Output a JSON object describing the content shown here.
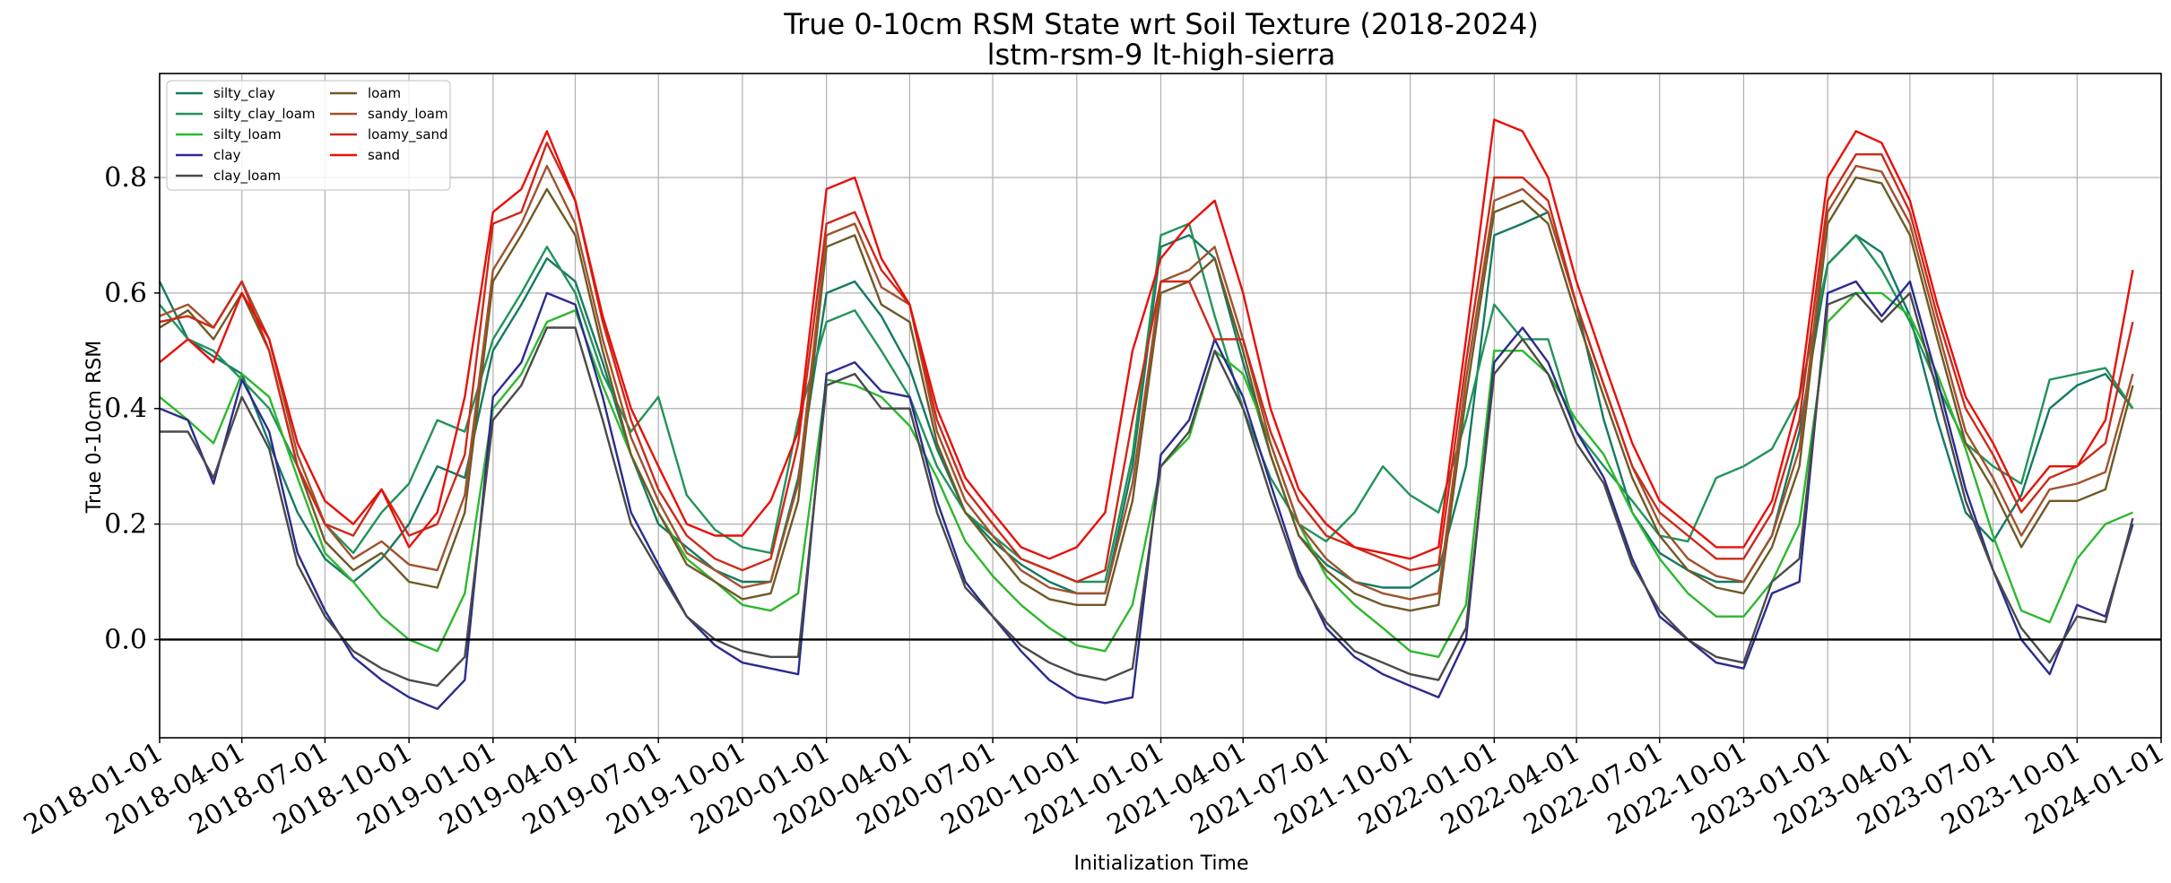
{
  "chart_data": {
    "type": "line",
    "title": "True 0-10cm RSM State wrt Soil Texture (2018-2024)",
    "subtitle": "lstm-rsm-9 lt-high-sierra",
    "xlabel": "Initialization Time",
    "ylabel": "True 0-10cm RSM",
    "xlim": [
      "2018-01-01",
      "2024-01-01"
    ],
    "ylim": [
      -0.17,
      0.98
    ],
    "x_ticks": [
      "2018-01-01",
      "2018-04-01",
      "2018-07-01",
      "2018-10-01",
      "2019-01-01",
      "2019-04-01",
      "2019-07-01",
      "2019-10-01",
      "2020-01-01",
      "2020-04-01",
      "2020-07-01",
      "2020-10-01",
      "2021-01-01",
      "2021-04-01",
      "2021-07-01",
      "2021-10-01",
      "2022-01-01",
      "2022-04-01",
      "2022-07-01",
      "2022-10-01",
      "2023-01-01",
      "2023-04-01",
      "2023-07-01",
      "2023-10-01",
      "2024-01-01"
    ],
    "y_ticks": [
      0.0,
      0.2,
      0.4,
      0.6,
      0.8
    ],
    "y_tick_labels": [
      "0.0",
      "0.2",
      "0.4",
      "0.6",
      "0.8"
    ],
    "grid": true,
    "zero_line": true,
    "legend_position": "top-left",
    "legend_columns": 2,
    "x": [
      "2018-01-01",
      "2018-02-01",
      "2018-03-01",
      "2018-04-01",
      "2018-05-01",
      "2018-06-01",
      "2018-07-01",
      "2018-08-01",
      "2018-09-01",
      "2018-10-01",
      "2018-11-01",
      "2018-12-01",
      "2019-01-01",
      "2019-02-01",
      "2019-03-01",
      "2019-04-01",
      "2019-05-01",
      "2019-06-01",
      "2019-07-01",
      "2019-08-01",
      "2019-09-01",
      "2019-10-01",
      "2019-11-01",
      "2019-12-01",
      "2020-01-01",
      "2020-02-01",
      "2020-03-01",
      "2020-04-01",
      "2020-05-01",
      "2020-06-01",
      "2020-07-01",
      "2020-08-01",
      "2020-09-01",
      "2020-10-01",
      "2020-11-01",
      "2020-12-01",
      "2021-01-01",
      "2021-02-01",
      "2021-03-01",
      "2021-04-01",
      "2021-05-01",
      "2021-06-01",
      "2021-07-01",
      "2021-08-01",
      "2021-09-01",
      "2021-10-01",
      "2021-11-01",
      "2021-12-01",
      "2022-01-01",
      "2022-02-01",
      "2022-03-01",
      "2022-04-01",
      "2022-05-01",
      "2022-06-01",
      "2022-07-01",
      "2022-08-01",
      "2022-09-01",
      "2022-10-01",
      "2022-11-01",
      "2022-12-01",
      "2023-01-01",
      "2023-02-01",
      "2023-03-01",
      "2023-04-01",
      "2023-05-01",
      "2023-06-01",
      "2023-07-01",
      "2023-08-01",
      "2023-09-01",
      "2023-10-01",
      "2023-11-01",
      "2023-12-01"
    ],
    "series": [
      {
        "name": "silty_clay",
        "color": "#147a62",
        "values": [
          0.62,
          0.52,
          0.49,
          0.46,
          0.34,
          0.22,
          0.14,
          0.1,
          0.14,
          0.2,
          0.3,
          0.28,
          0.5,
          0.58,
          0.66,
          0.62,
          0.48,
          0.32,
          0.2,
          0.16,
          0.12,
          0.1,
          0.1,
          0.28,
          0.6,
          0.62,
          0.56,
          0.47,
          0.33,
          0.22,
          0.17,
          0.13,
          0.1,
          0.08,
          0.08,
          0.3,
          0.68,
          0.7,
          0.66,
          0.48,
          0.32,
          0.18,
          0.13,
          0.1,
          0.09,
          0.09,
          0.12,
          0.3,
          0.7,
          0.72,
          0.74,
          0.58,
          0.38,
          0.22,
          0.15,
          0.12,
          0.1,
          0.1,
          0.18,
          0.36,
          0.65,
          0.7,
          0.67,
          0.56,
          0.38,
          0.22,
          0.17,
          0.25,
          0.4,
          0.44,
          0.46,
          0.4
        ]
      },
      {
        "name": "silty_clay_loam",
        "color": "#22935a",
        "values": [
          0.58,
          0.52,
          0.5,
          0.45,
          0.4,
          0.3,
          0.2,
          0.15,
          0.22,
          0.27,
          0.38,
          0.36,
          0.52,
          0.6,
          0.68,
          0.6,
          0.46,
          0.36,
          0.42,
          0.25,
          0.19,
          0.16,
          0.15,
          0.38,
          0.55,
          0.57,
          0.5,
          0.42,
          0.3,
          0.22,
          0.18,
          0.14,
          0.12,
          0.1,
          0.1,
          0.32,
          0.7,
          0.72,
          0.56,
          0.4,
          0.28,
          0.2,
          0.17,
          0.22,
          0.3,
          0.25,
          0.22,
          0.38,
          0.58,
          0.52,
          0.52,
          0.36,
          0.3,
          0.24,
          0.18,
          0.17,
          0.28,
          0.3,
          0.33,
          0.42,
          0.65,
          0.7,
          0.64,
          0.55,
          0.44,
          0.34,
          0.3,
          0.27,
          0.45,
          0.46,
          0.47,
          0.4
        ]
      },
      {
        "name": "silty_loam",
        "color": "#2eb82e",
        "values": [
          0.42,
          0.38,
          0.34,
          0.46,
          0.42,
          0.28,
          0.15,
          0.1,
          0.04,
          0.0,
          -0.02,
          0.08,
          0.4,
          0.46,
          0.55,
          0.57,
          0.44,
          0.32,
          0.22,
          0.14,
          0.1,
          0.06,
          0.05,
          0.08,
          0.45,
          0.44,
          0.42,
          0.37,
          0.28,
          0.17,
          0.11,
          0.06,
          0.02,
          -0.01,
          -0.02,
          0.06,
          0.3,
          0.35,
          0.5,
          0.46,
          0.34,
          0.2,
          0.11,
          0.06,
          0.02,
          -0.02,
          -0.03,
          0.06,
          0.5,
          0.5,
          0.46,
          0.38,
          0.32,
          0.22,
          0.14,
          0.08,
          0.04,
          0.04,
          0.1,
          0.2,
          0.55,
          0.6,
          0.6,
          0.56,
          0.46,
          0.33,
          0.18,
          0.05,
          0.03,
          0.14,
          0.2,
          0.22
        ]
      },
      {
        "name": "clay",
        "color": "#2b2b8f",
        "values": [
          0.4,
          0.38,
          0.27,
          0.45,
          0.36,
          0.15,
          0.05,
          -0.03,
          -0.07,
          -0.1,
          -0.12,
          -0.07,
          0.42,
          0.48,
          0.6,
          0.58,
          0.42,
          0.22,
          0.13,
          0.04,
          -0.01,
          -0.04,
          -0.05,
          -0.06,
          0.46,
          0.48,
          0.43,
          0.42,
          0.24,
          0.1,
          0.04,
          -0.02,
          -0.07,
          -0.1,
          -0.11,
          -0.1,
          0.32,
          0.38,
          0.52,
          0.42,
          0.27,
          0.12,
          0.02,
          -0.03,
          -0.06,
          -0.08,
          -0.1,
          0.0,
          0.48,
          0.54,
          0.48,
          0.36,
          0.28,
          0.14,
          0.04,
          0.0,
          -0.04,
          -0.05,
          0.08,
          0.1,
          0.6,
          0.62,
          0.56,
          0.62,
          0.45,
          0.26,
          0.12,
          0.0,
          -0.06,
          0.06,
          0.04,
          0.2
        ]
      },
      {
        "name": "clay_loam",
        "color": "#4a4a4a",
        "values": [
          0.36,
          0.36,
          0.28,
          0.42,
          0.33,
          0.13,
          0.04,
          -0.02,
          -0.05,
          -0.07,
          -0.08,
          -0.03,
          0.38,
          0.44,
          0.54,
          0.54,
          0.38,
          0.2,
          0.12,
          0.04,
          0.0,
          -0.02,
          -0.03,
          -0.03,
          0.44,
          0.46,
          0.4,
          0.4,
          0.22,
          0.09,
          0.04,
          -0.01,
          -0.04,
          -0.06,
          -0.07,
          -0.05,
          0.3,
          0.36,
          0.5,
          0.4,
          0.25,
          0.11,
          0.03,
          -0.02,
          -0.04,
          -0.06,
          -0.07,
          0.02,
          0.46,
          0.52,
          0.46,
          0.34,
          0.27,
          0.13,
          0.05,
          0.0,
          -0.03,
          -0.04,
          0.1,
          0.14,
          0.58,
          0.6,
          0.55,
          0.6,
          0.43,
          0.24,
          0.12,
          0.02,
          -0.04,
          0.04,
          0.03,
          0.21
        ]
      },
      {
        "name": "loam",
        "color": "#6f5a26",
        "values": [
          0.54,
          0.57,
          0.52,
          0.6,
          0.5,
          0.3,
          0.17,
          0.12,
          0.15,
          0.1,
          0.09,
          0.22,
          0.62,
          0.7,
          0.78,
          0.7,
          0.5,
          0.32,
          0.22,
          0.13,
          0.1,
          0.07,
          0.08,
          0.24,
          0.68,
          0.7,
          0.58,
          0.55,
          0.34,
          0.22,
          0.16,
          0.1,
          0.07,
          0.06,
          0.06,
          0.24,
          0.6,
          0.62,
          0.66,
          0.5,
          0.32,
          0.18,
          0.12,
          0.08,
          0.06,
          0.05,
          0.06,
          0.42,
          0.74,
          0.76,
          0.72,
          0.56,
          0.42,
          0.28,
          0.18,
          0.12,
          0.09,
          0.08,
          0.16,
          0.3,
          0.72,
          0.8,
          0.79,
          0.7,
          0.52,
          0.34,
          0.26,
          0.16,
          0.24,
          0.24,
          0.26,
          0.44
        ]
      },
      {
        "name": "sandy_loam",
        "color": "#a0522d",
        "values": [
          0.56,
          0.58,
          0.54,
          0.62,
          0.52,
          0.32,
          0.2,
          0.14,
          0.17,
          0.13,
          0.12,
          0.25,
          0.64,
          0.72,
          0.82,
          0.72,
          0.52,
          0.35,
          0.24,
          0.15,
          0.12,
          0.09,
          0.1,
          0.27,
          0.7,
          0.72,
          0.61,
          0.58,
          0.36,
          0.24,
          0.18,
          0.12,
          0.09,
          0.08,
          0.08,
          0.27,
          0.62,
          0.64,
          0.68,
          0.52,
          0.34,
          0.2,
          0.14,
          0.1,
          0.08,
          0.07,
          0.08,
          0.45,
          0.76,
          0.78,
          0.74,
          0.58,
          0.44,
          0.3,
          0.2,
          0.14,
          0.11,
          0.1,
          0.18,
          0.33,
          0.74,
          0.82,
          0.81,
          0.72,
          0.54,
          0.36,
          0.28,
          0.18,
          0.26,
          0.27,
          0.29,
          0.46
        ]
      },
      {
        "name": "loamy_sand",
        "color": "#cc2a1a",
        "values": [
          0.55,
          0.56,
          0.54,
          0.62,
          0.5,
          0.3,
          0.2,
          0.18,
          0.26,
          0.18,
          0.2,
          0.32,
          0.72,
          0.74,
          0.86,
          0.76,
          0.55,
          0.38,
          0.26,
          0.18,
          0.14,
          0.12,
          0.14,
          0.34,
          0.72,
          0.74,
          0.64,
          0.58,
          0.38,
          0.26,
          0.2,
          0.14,
          0.12,
          0.1,
          0.12,
          0.38,
          0.62,
          0.62,
          0.52,
          0.52,
          0.36,
          0.24,
          0.18,
          0.16,
          0.14,
          0.12,
          0.13,
          0.48,
          0.8,
          0.8,
          0.76,
          0.58,
          0.44,
          0.3,
          0.22,
          0.18,
          0.14,
          0.14,
          0.22,
          0.38,
          0.76,
          0.84,
          0.84,
          0.74,
          0.56,
          0.4,
          0.32,
          0.22,
          0.28,
          0.3,
          0.34,
          0.55
        ]
      },
      {
        "name": "sand",
        "color": "#e8100a",
        "values": [
          0.48,
          0.52,
          0.48,
          0.6,
          0.52,
          0.34,
          0.24,
          0.2,
          0.26,
          0.16,
          0.22,
          0.42,
          0.74,
          0.78,
          0.88,
          0.76,
          0.56,
          0.4,
          0.3,
          0.2,
          0.18,
          0.18,
          0.24,
          0.36,
          0.78,
          0.8,
          0.66,
          0.58,
          0.4,
          0.28,
          0.22,
          0.16,
          0.14,
          0.16,
          0.22,
          0.5,
          0.66,
          0.72,
          0.76,
          0.6,
          0.4,
          0.26,
          0.2,
          0.16,
          0.15,
          0.14,
          0.16,
          0.52,
          0.9,
          0.88,
          0.8,
          0.62,
          0.48,
          0.34,
          0.24,
          0.2,
          0.16,
          0.16,
          0.24,
          0.42,
          0.8,
          0.88,
          0.86,
          0.76,
          0.58,
          0.42,
          0.34,
          0.24,
          0.3,
          0.3,
          0.38,
          0.64
        ]
      }
    ]
  }
}
